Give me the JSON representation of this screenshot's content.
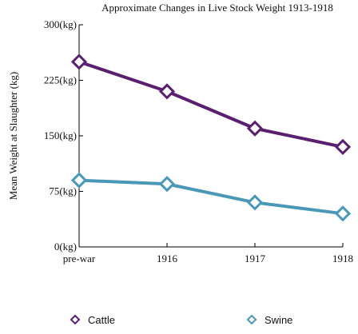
{
  "chart_data": {
    "type": "line",
    "title": "Approximate Changes in Live Stock Weight 1913-1918",
    "ylabel": "Mean Weight at Slaughter (kg)",
    "xlabel": "",
    "categories": [
      "pre-war",
      "1916",
      "1917",
      "1918"
    ],
    "ylim": [
      0,
      300
    ],
    "yticks": [
      0,
      75,
      150,
      225,
      300
    ],
    "ytick_labels": [
      "0(kg)",
      "75(kg)",
      "150(kg)",
      "225(kg)",
      "300(kg)"
    ],
    "grid": false,
    "legend": "bottom",
    "series": [
      {
        "name": "Cattle",
        "values": [
          250,
          210,
          160,
          135
        ],
        "color": "#5a1f6e"
      },
      {
        "name": "Swine",
        "values": [
          90,
          85,
          60,
          45
        ],
        "color": "#4a98b8"
      }
    ]
  }
}
